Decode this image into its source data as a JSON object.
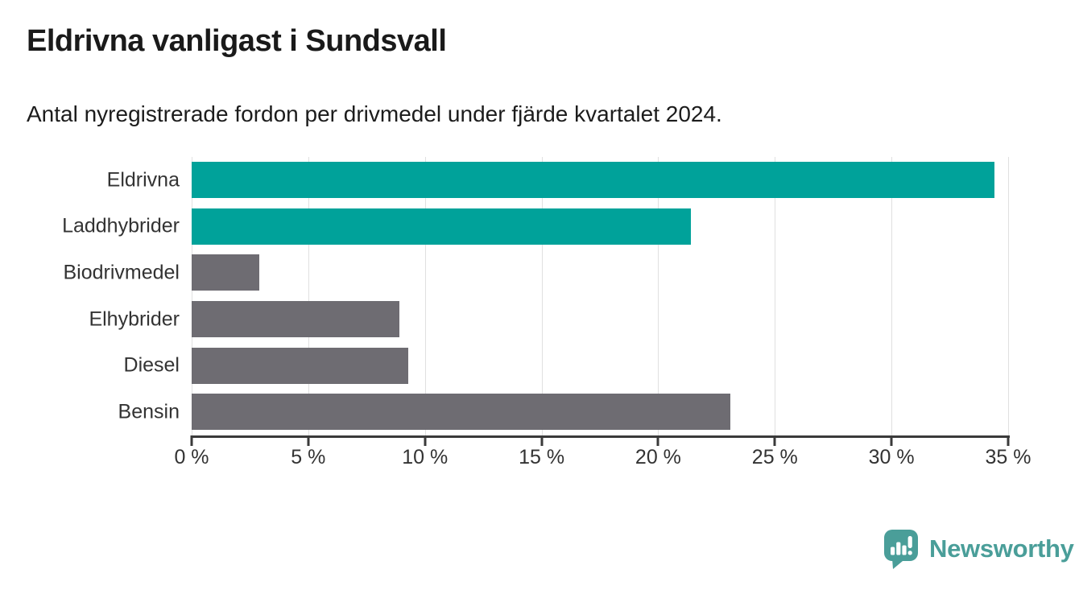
{
  "title": "Eldrivna vanligast i Sundsvall",
  "subtitle": "Antal nyregistrerade fordon per drivmedel under fjärde kvartalet 2024.",
  "logo": {
    "brand": "Newsworthy",
    "icon": "newsworthy-speech-bubble-chart-icon",
    "color": "#4a9e99"
  },
  "colors": {
    "teal_bar": "#00a29a",
    "gray_bar": "#6e6c72",
    "axis": "#3a3a3a",
    "gridline": "#e0e0e0",
    "title_text": "#1a1a1a",
    "label_text": "#333333",
    "background": "#ffffff"
  },
  "chart_data": {
    "type": "bar",
    "orientation": "horizontal",
    "title": "Eldrivna vanligast i Sundsvall",
    "subtitle": "Antal nyregistrerade fordon per drivmedel under fjärde kvartalet 2024.",
    "categories": [
      "Eldrivna",
      "Laddhybrider",
      "Biodrivmedel",
      "Elhybrider",
      "Diesel",
      "Bensin"
    ],
    "values": [
      34.4,
      21.4,
      2.9,
      8.9,
      9.3,
      23.1
    ],
    "bar_colors": [
      "#00a29a",
      "#00a29a",
      "#6e6c72",
      "#6e6c72",
      "#6e6c72",
      "#6e6c72"
    ],
    "xlabel": "",
    "ylabel": "",
    "xlim": [
      0,
      35
    ],
    "x_tick_values": [
      0,
      5,
      10,
      15,
      20,
      25,
      30,
      35
    ],
    "x_tick_labels": [
      "0 %",
      "5 %",
      "10 %",
      "15 %",
      "20 %",
      "25 %",
      "30 %",
      "35 %"
    ],
    "grid": true,
    "legend": false
  }
}
